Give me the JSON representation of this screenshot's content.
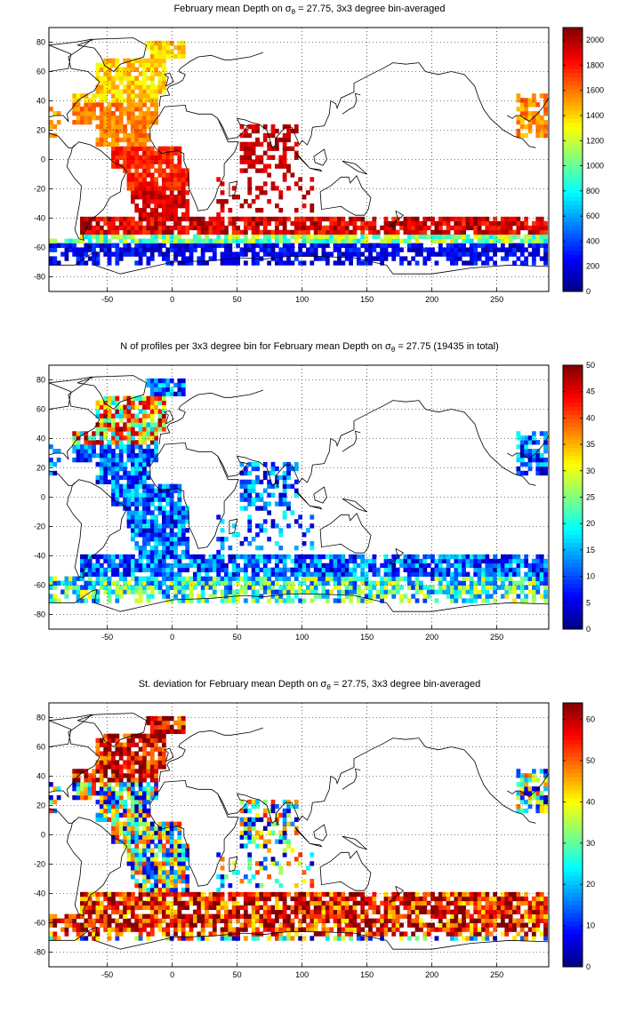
{
  "colormap": "jet",
  "colors": {
    "frame": "#000000",
    "grid": "#000000",
    "coastline": "#000000",
    "background": "#ffffff"
  },
  "chart_data": [
    {
      "type": "heatmap",
      "title": {
        "prefix": "February mean Depth on ",
        "sigma": "σ",
        "sub": "θ",
        "suffix": " = 27.75, 3x3 degree bin-averaged"
      },
      "xlabel": "",
      "ylabel": "",
      "xlim": [
        -95,
        290
      ],
      "ylim": [
        -90,
        90
      ],
      "xticks": [
        "-50",
        "0",
        "50",
        "100",
        "150",
        "200",
        "250"
      ],
      "yticks": [
        "80",
        "60",
        "40",
        "20",
        "0",
        "-20",
        "-40",
        "-60",
        "-80"
      ],
      "colorbar": {
        "range": [
          0,
          2100
        ],
        "ticks": [
          "0",
          "200",
          "400",
          "600",
          "800",
          "1000",
          "1200",
          "1400",
          "1600",
          "1800",
          "2000"
        ]
      },
      "bin_size_deg": 3,
      "grid": true,
      "pattern": "depth"
    },
    {
      "type": "heatmap",
      "title": {
        "prefix": "N of profiles per 3x3 degree bin for February mean Depth on ",
        "sigma": "σ",
        "sub": "θ",
        "suffix": " = 27.75 (19435 in total)"
      },
      "xlabel": "",
      "ylabel": "",
      "xlim": [
        -95,
        290
      ],
      "ylim": [
        -90,
        90
      ],
      "xticks": [
        "-50",
        "0",
        "50",
        "100",
        "150",
        "200",
        "250"
      ],
      "yticks": [
        "80",
        "60",
        "40",
        "20",
        "0",
        "-20",
        "-40",
        "-60",
        "-80"
      ],
      "colorbar": {
        "range": [
          0,
          50
        ],
        "ticks": [
          "0",
          "5",
          "10",
          "15",
          "20",
          "25",
          "30",
          "35",
          "40",
          "45",
          "50"
        ]
      },
      "bin_size_deg": 3,
      "grid": true,
      "pattern": "count"
    },
    {
      "type": "heatmap",
      "title": {
        "prefix": "St. deviation for February mean Depth on ",
        "sigma": "σ",
        "sub": "θ",
        "suffix": " = 27.75, 3x3 degree bin-averaged"
      },
      "xlabel": "",
      "ylabel": "",
      "xlim": [
        -95,
        290
      ],
      "ylim": [
        -90,
        90
      ],
      "xticks": [
        "-50",
        "0",
        "50",
        "100",
        "150",
        "200",
        "250"
      ],
      "yticks": [
        "80",
        "60",
        "40",
        "20",
        "0",
        "-20",
        "-40",
        "-60",
        "-80"
      ],
      "colorbar": {
        "range": [
          0,
          64
        ],
        "ticks": [
          "0",
          "10",
          "20",
          "30",
          "40",
          "50",
          "60"
        ]
      },
      "bin_size_deg": 3,
      "grid": true,
      "pattern": "std"
    }
  ]
}
